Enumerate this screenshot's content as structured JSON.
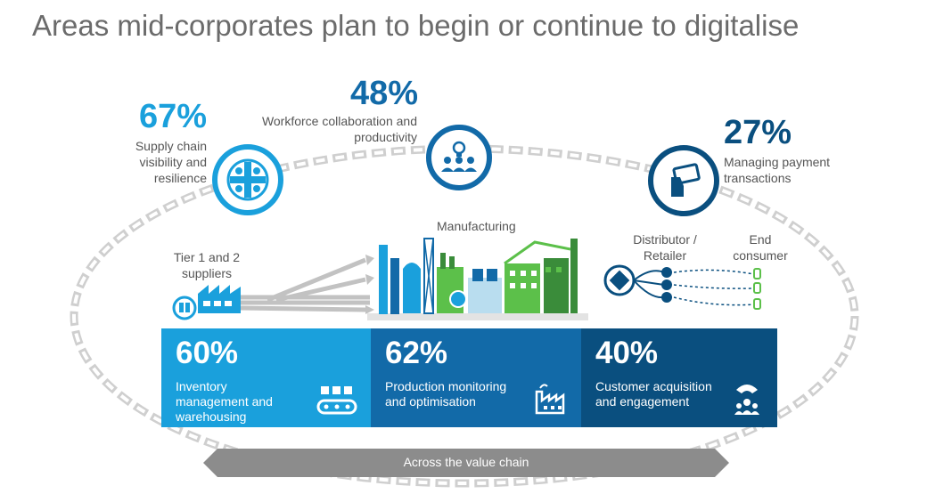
{
  "title": "Areas mid-corporates plan to begin or continue to digitalise",
  "areas": [
    {
      "id": "supply",
      "percent": "67%",
      "label": "Supply chain visibility and resilience",
      "icon": "network-icon",
      "color": "#1aa0dc"
    },
    {
      "id": "workforce",
      "percent": "48%",
      "label": "Workforce collaboration and productivity",
      "icon": "team-lightbulb-icon",
      "color": "#126aa8"
    },
    {
      "id": "payment",
      "percent": "27%",
      "label": "Managing payment transactions",
      "icon": "card-payment-icon",
      "color": "#0a4f7f"
    }
  ],
  "stages": {
    "tier": "Tier 1 and 2 suppliers",
    "manufacturing": "Manufacturing",
    "distributor": "Distributor / Retailer",
    "consumer": "End consumer"
  },
  "boxes": [
    {
      "percent": "60%",
      "label": "Inventory management and warehousing",
      "icon": "conveyor-icon",
      "color": "#1aa0dc"
    },
    {
      "percent": "62%",
      "label": "Production monitoring and optimisation",
      "icon": "factory-icon",
      "color": "#126aa8"
    },
    {
      "percent": "40%",
      "label": "Customer acquisition and engagement",
      "icon": "customer-magnet-icon",
      "color": "#0a4f7f"
    }
  ],
  "footer": "Across the value chain"
}
